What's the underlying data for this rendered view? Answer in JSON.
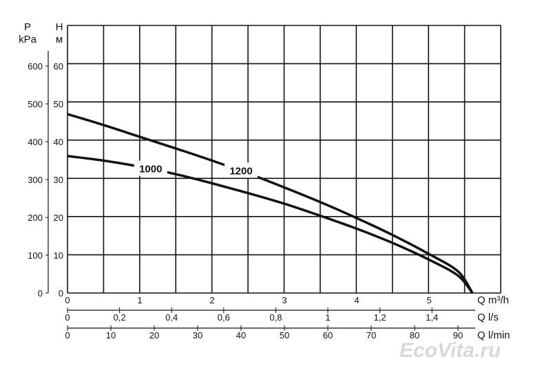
{
  "chart_data": {
    "type": "line",
    "title": "",
    "grid": true,
    "left_axis_1": {
      "label_top": "P",
      "label_unit": "kPa",
      "ticks": [
        "0",
        "100",
        "200",
        "300",
        "400",
        "500",
        "600"
      ],
      "range": [
        0,
        600
      ]
    },
    "left_axis_2": {
      "label_top": "H",
      "label_unit": "м",
      "ticks": [
        "0",
        "10",
        "20",
        "30",
        "40",
        "50",
        "60"
      ],
      "range": [
        0,
        60
      ]
    },
    "x_axis_1": {
      "label": "Q m³/h",
      "ticks": [
        "0",
        "1",
        "2",
        "3",
        "4",
        "5"
      ],
      "range": [
        0,
        5.8
      ]
    },
    "x_axis_2": {
      "label": "Q l/s",
      "ticks": [
        "0",
        "0,2",
        "0,4",
        "0,6",
        "0,8",
        "1",
        "1,2",
        "1,4"
      ]
    },
    "x_axis_3": {
      "label": "Q l/min",
      "ticks": [
        "0",
        "10",
        "20",
        "30",
        "40",
        "50",
        "60",
        "70",
        "80",
        "90"
      ]
    },
    "series": [
      {
        "name": "1200",
        "x": [
          0,
          0.5,
          1,
          1.5,
          2,
          2.5,
          3,
          3.5,
          4,
          4.5,
          5,
          5.4,
          5.6
        ],
        "y": [
          47.3,
          44.4,
          41.3,
          38.2,
          35.0,
          31.6,
          27.9,
          24.0,
          19.8,
          15.3,
          10.3,
          5.7,
          0
        ]
      },
      {
        "name": "1000",
        "x": [
          0,
          0.5,
          1,
          1.5,
          2,
          2.5,
          3,
          3.5,
          4,
          4.5,
          5,
          5.4,
          5.6
        ],
        "y": [
          36.2,
          35.0,
          33.4,
          31.4,
          29.0,
          26.4,
          23.6,
          20.4,
          17.0,
          13.2,
          8.8,
          4.6,
          0
        ]
      }
    ],
    "watermark": "EcoVita.ru"
  }
}
